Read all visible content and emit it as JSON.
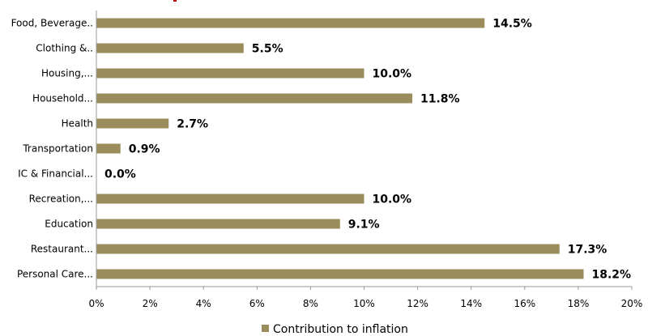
{
  "chart_data": {
    "type": "bar",
    "orientation": "horizontal",
    "categories": [
      "Food, Beverage..",
      "Clothing &..",
      "Housing,...",
      "Household...",
      "Health",
      "Transportation",
      "IC & Financial...",
      "Recreation,...",
      "Education",
      "Restaurant...",
      "Personal Care..."
    ],
    "series": [
      {
        "name": "Contribution to inflation",
        "values": [
          14.5,
          5.5,
          10.0,
          11.8,
          2.7,
          0.9,
          0.0,
          10.0,
          9.1,
          17.3,
          18.2
        ],
        "value_labels": [
          "14.5%",
          "5.5%",
          "10.0%",
          "11.8%",
          "2.7%",
          "0.9%",
          "0.0%",
          "10.0%",
          "9.1%",
          "17.3%",
          "18.2%"
        ]
      }
    ],
    "xlim": [
      0,
      20
    ],
    "xticks": [
      "0%",
      "2%",
      "4%",
      "6%",
      "8%",
      "10%",
      "12%",
      "14%",
      "16%",
      "18%",
      "20%"
    ],
    "grid": false,
    "legend": "bottom",
    "colors": {
      "bar": "#9b8c5c",
      "axis": "#999999",
      "title_accent": "#c00000"
    }
  }
}
